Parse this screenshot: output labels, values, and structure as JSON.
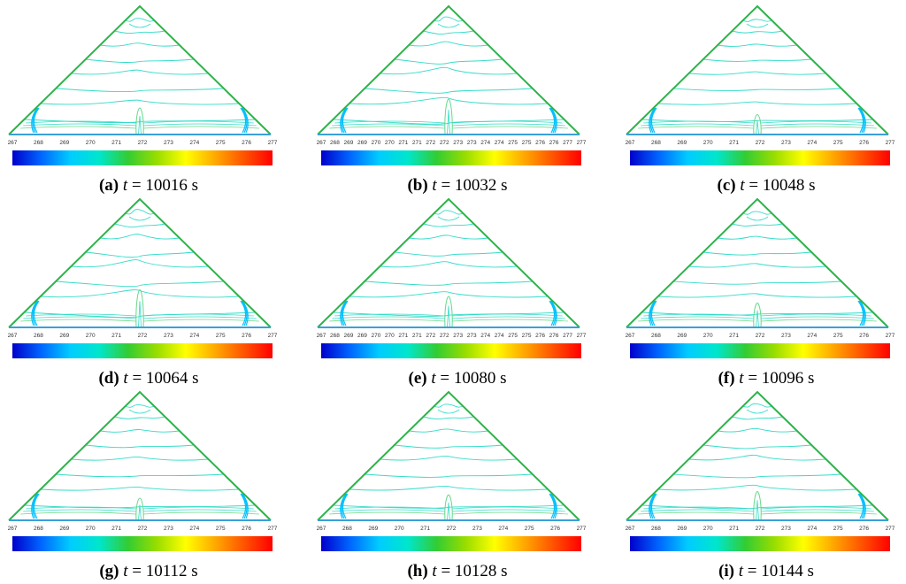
{
  "colorbar": {
    "stops": [
      "#0000cc",
      "#0066ff",
      "#00ccff",
      "#00e6cc",
      "#33cc33",
      "#99dd00",
      "#ffff00",
      "#ffaa00",
      "#ff5500",
      "#ff0000"
    ],
    "line_colors": {
      "boundary": "#2db34a",
      "base_edge": "#3aa0d8",
      "cold": "#00bfff",
      "mid": "#33dcc8",
      "warm": "#66d98a"
    }
  },
  "tick_sets": {
    "coarse": [
      "267",
      "268",
      "269",
      "270",
      "271",
      "272",
      "273",
      "274",
      "275",
      "276",
      "277"
    ],
    "fine": [
      "267",
      "268",
      "269",
      "269",
      "270",
      "270",
      "271",
      "271",
      "272",
      "272",
      "273",
      "273",
      "274",
      "274",
      "275",
      "275",
      "276",
      "276",
      "277",
      "277"
    ]
  },
  "panels": [
    {
      "label": "(a)",
      "t": "t",
      "rest": " = 10016 s",
      "ticks": "coarse",
      "plume": 0.6
    },
    {
      "label": "(b)",
      "t": "t",
      "rest": " = 10032 s",
      "ticks": "fine",
      "plume": 1.0
    },
    {
      "label": "(c)",
      "t": "t",
      "rest": " = 10048 s",
      "ticks": "coarse",
      "plume": 0.3
    },
    {
      "label": "(d)",
      "t": "t",
      "rest": " = 10064 s",
      "ticks": "coarse",
      "plume": 1.1
    },
    {
      "label": "(e)",
      "t": "t",
      "rest": " = 10080 s",
      "ticks": "fine",
      "plume": 0.8
    },
    {
      "label": "(f)",
      "t": "t",
      "rest": " = 10096 s",
      "ticks": "coarse",
      "plume": 0.5
    },
    {
      "label": "(g)",
      "t": "t",
      "rest": " = 10112 s",
      "ticks": "coarse",
      "plume": 0.4
    },
    {
      "label": "(h)",
      "t": "t",
      "rest": " = 10128 s",
      "ticks": "coarse",
      "plume": 0.55
    },
    {
      "label": "(i)",
      "t": "t",
      "rest": " = 10144 s",
      "ticks": "coarse",
      "plume": 0.7
    }
  ]
}
